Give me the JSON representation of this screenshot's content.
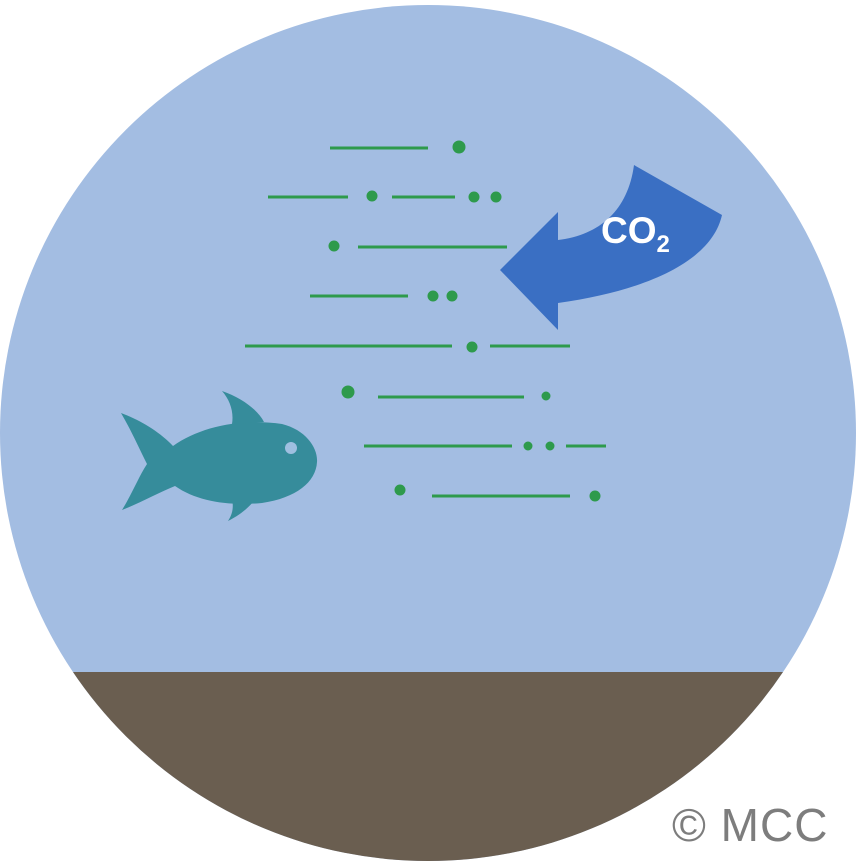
{
  "illustration": {
    "co2_label": {
      "main": "CO",
      "subscript": "2"
    },
    "copyright": "© MCC",
    "colors": {
      "water": "#a3bde2",
      "seabed": "#6a5e50",
      "fish": "#368c9b",
      "fish_eye": "#9fbfe0",
      "plankton": "#2e9a4c",
      "arrow": "#3a6fc3",
      "label_text": "#ffffff",
      "copyright_text": "#7d7d7d"
    },
    "icons": [
      "fish-icon",
      "co2-arrow-icon",
      "plankton-lines"
    ]
  }
}
